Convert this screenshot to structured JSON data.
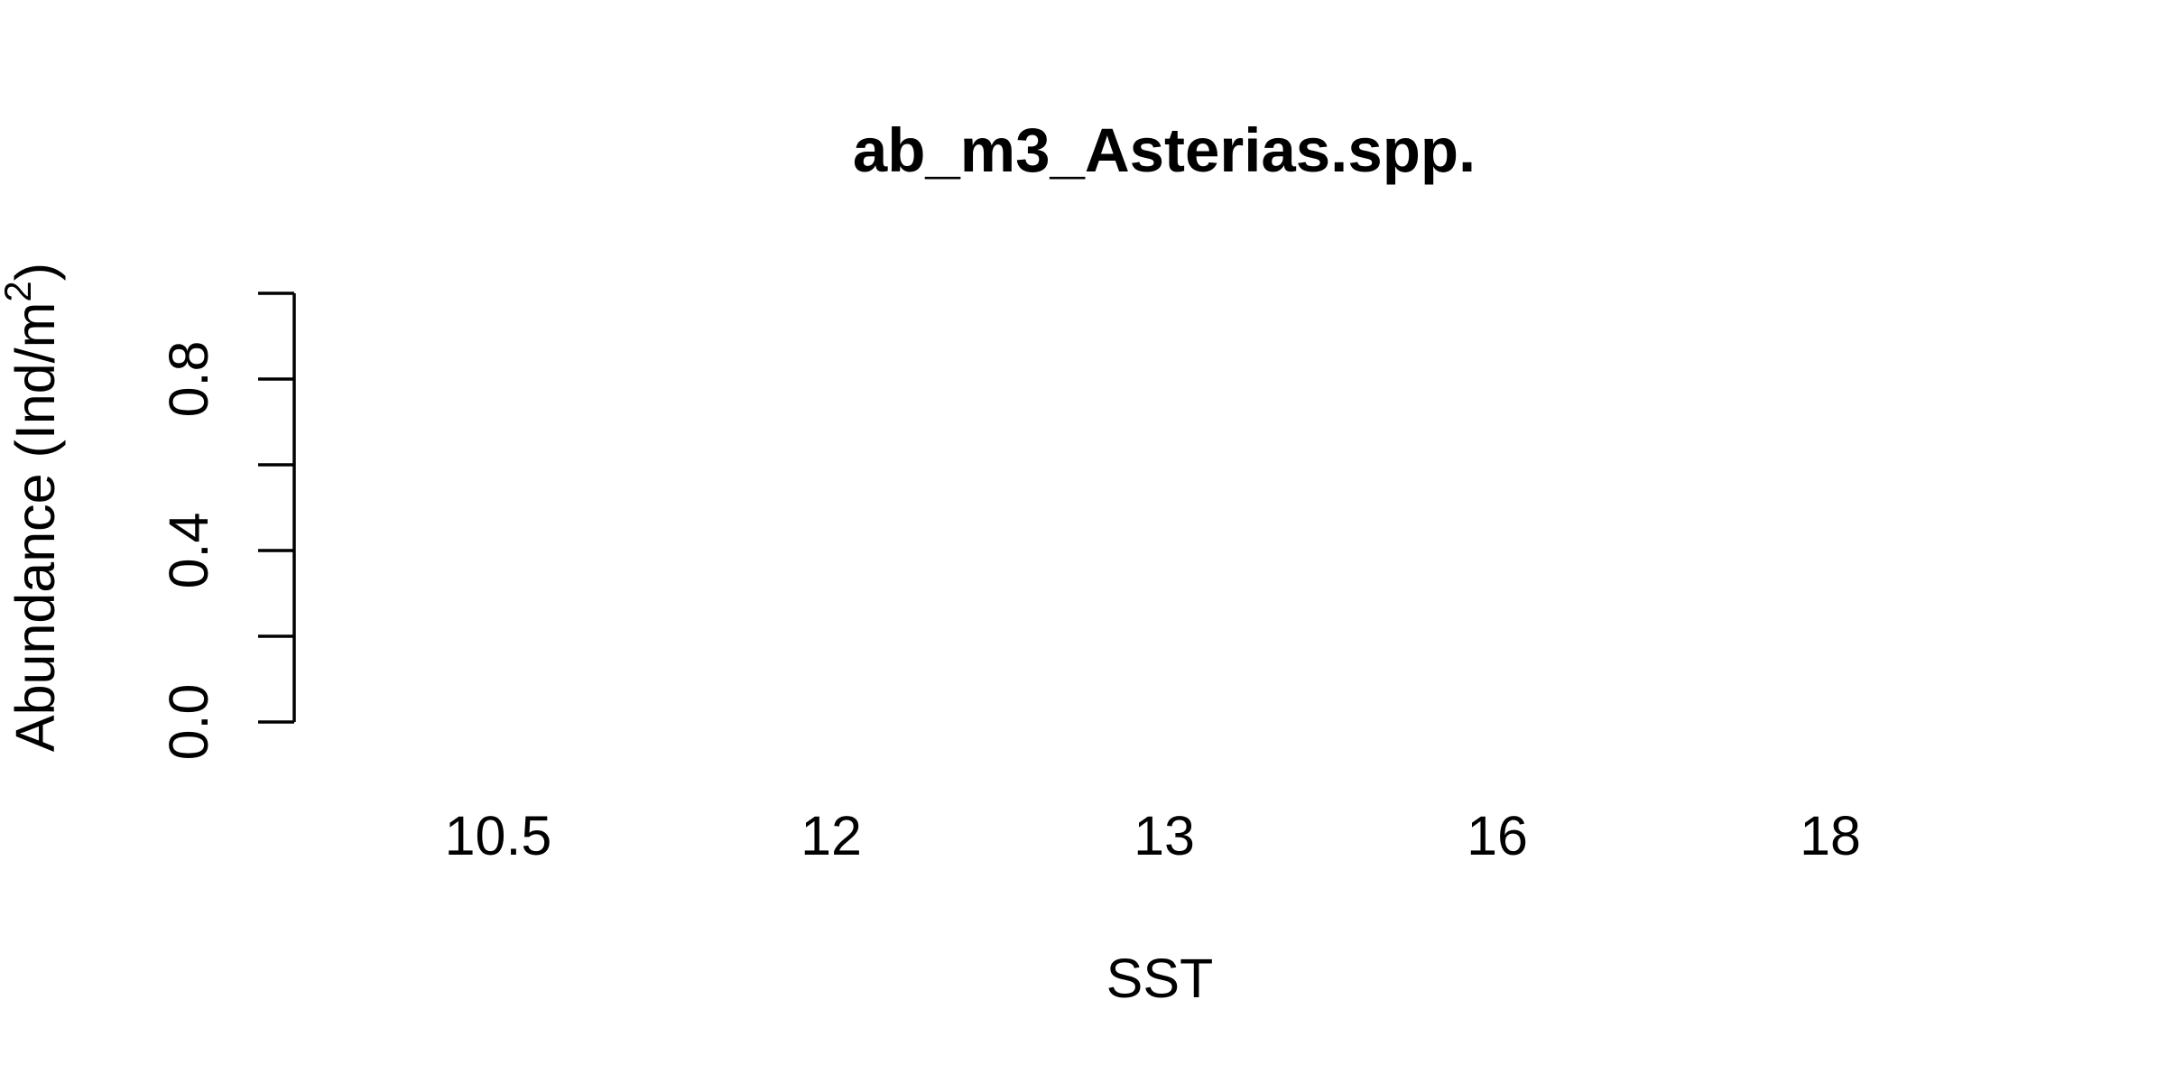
{
  "chart_data": {
    "type": "bar",
    "title": "ab_m3_Asterias.spp.",
    "xlabel": "SST",
    "ylabel": "Abundance (Ind/m",
    "ylabel_superscript": "2",
    "ylabel_suffix": ")",
    "categories": [
      "10.5",
      "12",
      "13",
      "16",
      "18"
    ],
    "values": [
      0,
      0,
      0,
      0,
      0
    ],
    "ylim": [
      0,
      1
    ],
    "y_ticks": [
      0,
      0.2,
      0.4,
      0.6,
      0.8,
      1.0
    ],
    "y_tick_labels": [
      "0.0",
      "",
      "0.4",
      "",
      "0.8",
      ""
    ],
    "grid": false,
    "legend": "none",
    "colors": {
      "axis": "#000000",
      "text": "#000000",
      "background": "#ffffff"
    }
  }
}
